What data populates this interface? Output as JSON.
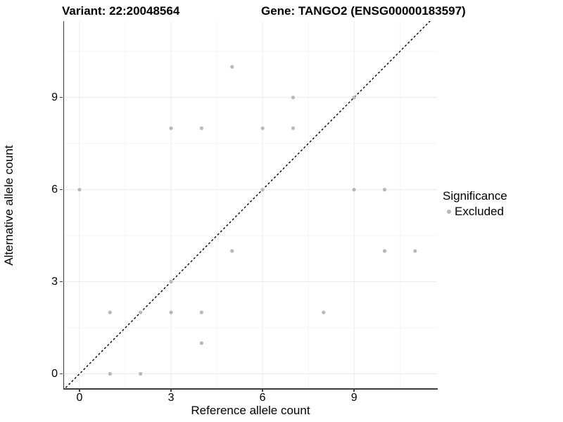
{
  "chart_data": {
    "type": "scatter",
    "title_left": "Variant: 22:20048564",
    "title_right": "Gene: TANGO2 (ENSG00000183597)",
    "xlabel": "Reference allele count",
    "ylabel": "Alternative allele count",
    "x_ticks": [
      0,
      3,
      6,
      9
    ],
    "y_ticks": [
      0,
      3,
      6,
      9
    ],
    "x_minor": [
      1.5,
      4.5,
      7.5,
      10.5
    ],
    "y_minor": [
      1.5,
      4.5,
      7.5,
      10.5
    ],
    "xlim": [
      -0.55,
      11.6
    ],
    "ylim": [
      -0.48,
      11.5
    ],
    "grid": true,
    "identity_line": {
      "style": "dashed",
      "color": "#000000",
      "slope": 1,
      "intercept": 0
    },
    "legend": {
      "title": "Significance",
      "position": "right",
      "items": [
        {
          "label": "Excluded",
          "color": "#b8b8b8"
        }
      ]
    },
    "series": [
      {
        "name": "Excluded",
        "color": "#b8b8b8",
        "points": [
          [
            0,
            6
          ],
          [
            1,
            0
          ],
          [
            1,
            2
          ],
          [
            2,
            0
          ],
          [
            2,
            2
          ],
          [
            3,
            2
          ],
          [
            3,
            3
          ],
          [
            3,
            8
          ],
          [
            4,
            1
          ],
          [
            4,
            2
          ],
          [
            4,
            8
          ],
          [
            5,
            4
          ],
          [
            5,
            10
          ],
          [
            6,
            6
          ],
          [
            6,
            8
          ],
          [
            7,
            8
          ],
          [
            7,
            9
          ],
          [
            8,
            2
          ],
          [
            9,
            6
          ],
          [
            9,
            9
          ],
          [
            10,
            4
          ],
          [
            10,
            6
          ],
          [
            11,
            4
          ]
        ]
      }
    ],
    "colors": {
      "grid_major": "#ebebeb",
      "grid_minor": "#f4f4f4",
      "axis": "#3c3c3c",
      "point": "#b8b8b8",
      "text": "#000000"
    }
  }
}
